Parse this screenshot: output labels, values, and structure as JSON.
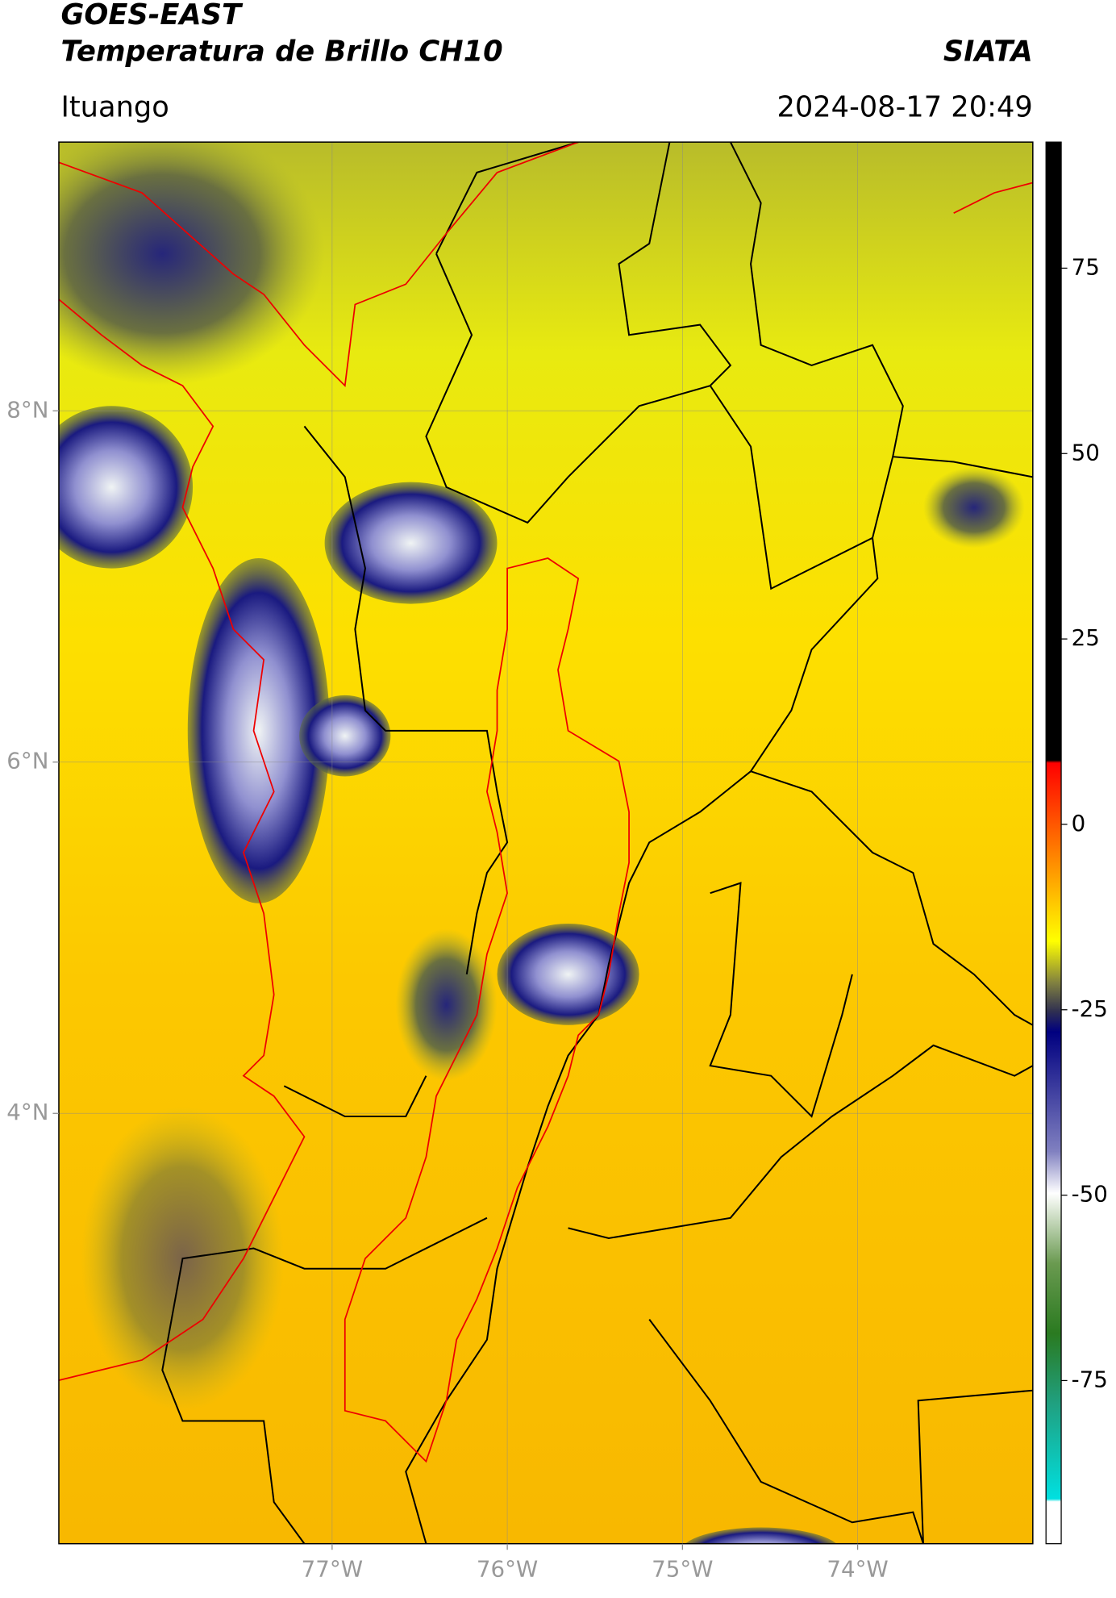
{
  "header": {
    "title": "GOES-EAST",
    "subtitle": "Temperatura de Brillo CH10",
    "source": "SIATA",
    "region": "Ituango",
    "datetime": "2024-08-17 20:49"
  },
  "map": {
    "xlim": [
      -78.56,
      -73.0
    ],
    "ylim": [
      1.55,
      9.53
    ],
    "xticks": [
      {
        "value": -77,
        "label": "77°W"
      },
      {
        "value": -76,
        "label": "76°W"
      },
      {
        "value": -75,
        "label": "75°W"
      },
      {
        "value": -74,
        "label": "74°W"
      }
    ],
    "yticks": [
      {
        "value": 8,
        "label": "8°N"
      },
      {
        "value": 6,
        "label": "6°N"
      },
      {
        "value": 4,
        "label": "4°N"
      }
    ]
  },
  "colorbar": {
    "lim": [
      -97,
      92
    ],
    "ticks": [
      75,
      50,
      25,
      0,
      -25,
      -50,
      -75
    ]
  }
}
